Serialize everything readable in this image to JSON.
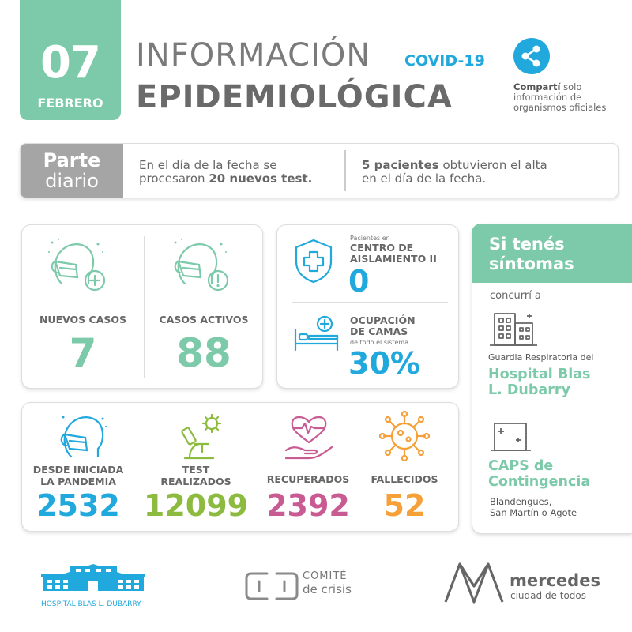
{
  "header": {
    "day": "07",
    "month": "FEBRERO",
    "title_line1": "INFORMACIÓN",
    "covid_tag": "COVID-19",
    "title_line2": "EPIDEMIOLÓGICA",
    "share_bold": "Compartí",
    "share_rest": " solo",
    "share_line2": "información de",
    "share_line3": "organismos oficiales"
  },
  "parte": {
    "tag_line1": "Parte",
    "tag_line2": "diario",
    "left_line1": "En el día de la fecha se",
    "left_line2_pre": "procesaron ",
    "left_line2_bold": "20 nuevos test.",
    "right_line1_bold": "5 pacientes",
    "right_line1_rest": " obtuvieron el alta",
    "right_line2": "en el día de la fecha."
  },
  "cases": {
    "nuevos_label": "NUEVOS CASOS",
    "nuevos_value": "7",
    "activos_label": "CASOS ACTIVOS",
    "activos_value": "88"
  },
  "isolation": {
    "small": "Pacientes en",
    "title_line1": "CENTRO DE",
    "title_line2": "AISLAMIENTO II",
    "value": "0",
    "beds_line1": "OCUPACIÓN",
    "beds_line2": "DE CAMAS",
    "beds_small": "de todo el sistema",
    "beds_value": "30%"
  },
  "totals": {
    "pandemia_line1": "DESDE INICIADA",
    "pandemia_line2": "LA PANDEMIA",
    "pandemia_value": "2532",
    "test_line1": "TEST",
    "test_line2": "REALIZADOS",
    "test_value": "12099",
    "recuperados_label": "RECUPERADOS",
    "recuperados_value": "2392",
    "fallecidos_label": "FALLECIDOS",
    "fallecidos_value": "52"
  },
  "sidebar": {
    "head_line1": "Si tenés",
    "head_line2": "síntomas",
    "concurri": "concurrí a",
    "guardia": "Guardia Respiratoria del",
    "hospital_line1": "Hospital Blas",
    "hospital_line2": "L. Dubarry",
    "caps_line1": "CAPS de",
    "caps_line2": "Contingencia",
    "caps_addr1": "Blandengues,",
    "caps_addr2": "San Martín o Agote"
  },
  "footer": {
    "hospital_caption": "HOSPITAL BLAS L. DUBARRY",
    "comite_line1": "COMITÉ",
    "comite_line2": "de crisis",
    "mercedes_line1": "mercedes",
    "mercedes_line2": "ciudad de todos"
  },
  "colors": {
    "green": "#7ccaa9",
    "blue": "#21a8dc",
    "lime": "#8dbb3f",
    "pink": "#c95b93",
    "orange": "#f5a038",
    "gray": "#a5a5a5"
  },
  "icons": [
    "share-icon",
    "masked-person-plus-icon",
    "masked-person-alert-icon",
    "shield-cross-icon",
    "hospital-bed-icon",
    "masked-person-icon",
    "microscope-virus-icon",
    "heart-hand-icon",
    "virus-icon",
    "hospital-building-icon",
    "clinic-building-icon",
    "hospital-logo",
    "comite-logo",
    "mercedes-logo"
  ]
}
